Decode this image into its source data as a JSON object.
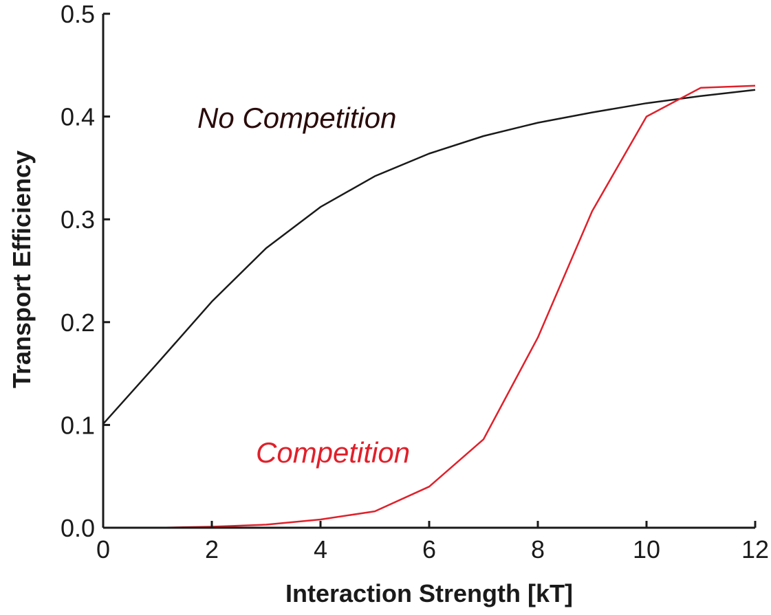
{
  "chart_data": {
    "type": "line",
    "title": "",
    "xlabel": "Interaction Strength [kT]",
    "ylabel": "Transport Efficiency",
    "xlim": [
      0,
      12
    ],
    "ylim": [
      0,
      0.5
    ],
    "x_ticks": [
      "0",
      "2",
      "4",
      "6",
      "8",
      "10",
      "12"
    ],
    "y_ticks": [
      "0.0",
      "0.1",
      "0.2",
      "0.3",
      "0.4",
      "0.5"
    ],
    "grid": false,
    "legend": "none",
    "x": [
      0,
      1,
      2,
      3,
      4,
      5,
      6,
      7,
      8,
      9,
      10,
      11,
      12
    ],
    "series": [
      {
        "name": "No Competition",
        "color": "#1a1a1a",
        "values": [
          0.101,
          0.16,
          0.22,
          0.272,
          0.312,
          0.342,
          0.364,
          0.381,
          0.394,
          0.404,
          0.413,
          0.42,
          0.426
        ]
      },
      {
        "name": "Competition",
        "color": "#e0202a",
        "values": [
          0.0,
          0.0,
          0.001,
          0.003,
          0.008,
          0.016,
          0.04,
          0.086,
          0.185,
          0.308,
          0.4,
          0.428,
          0.43
        ]
      }
    ],
    "annotations": [
      {
        "text": "No Competition",
        "color": "#2a0a0a"
      },
      {
        "text": "Competition",
        "color": "#e0202a"
      }
    ]
  }
}
